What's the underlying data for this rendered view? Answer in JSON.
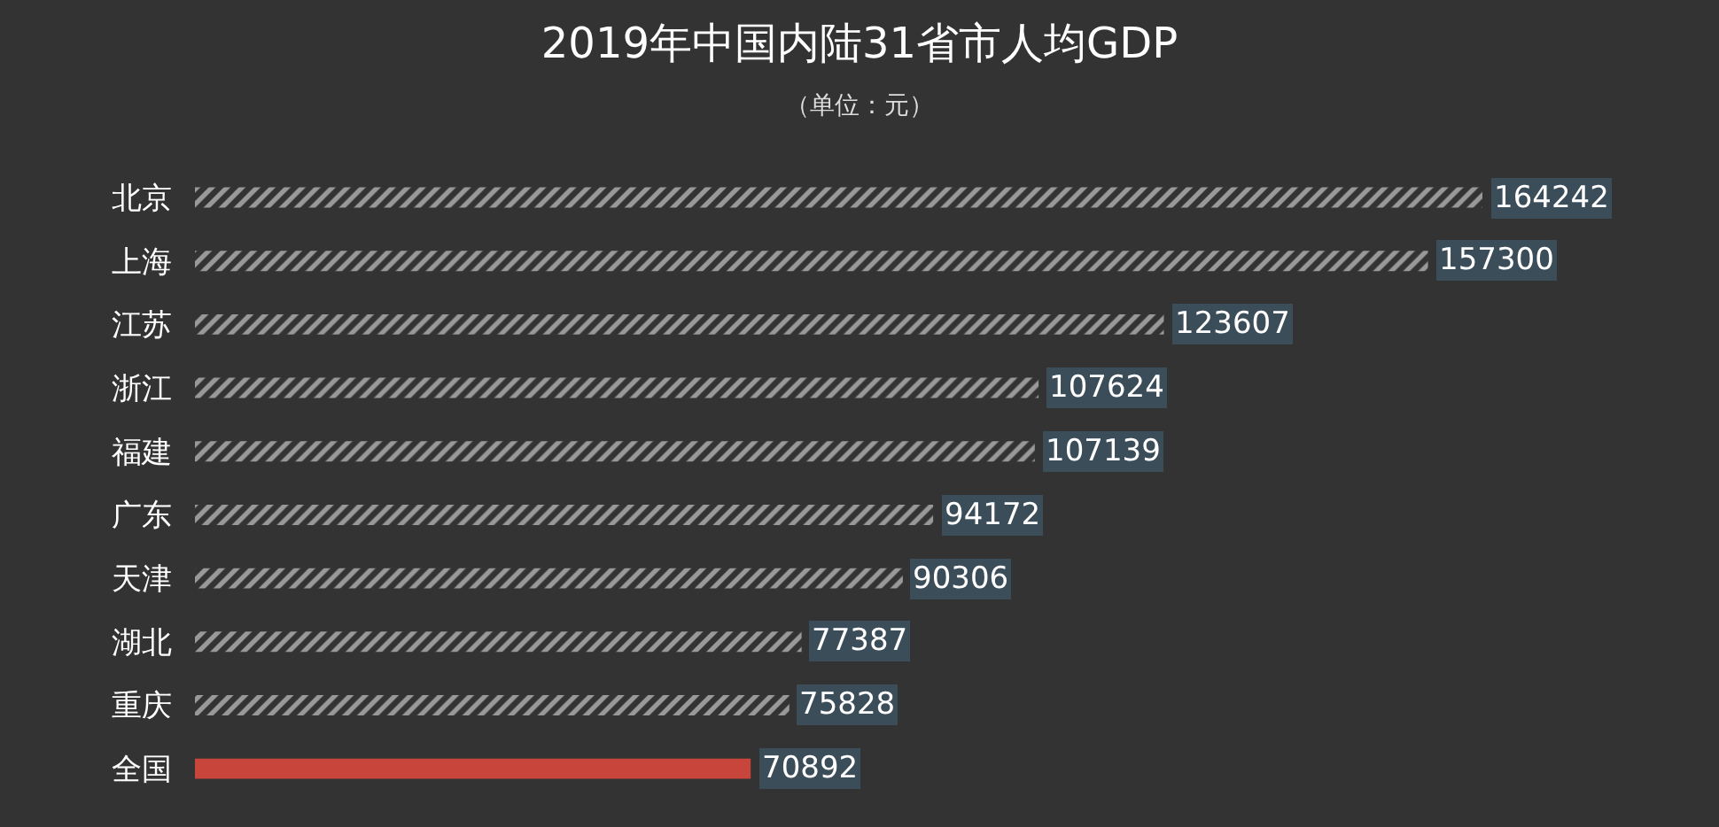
{
  "chart_data": {
    "type": "bar",
    "orientation": "horizontal",
    "title": "2019年中国内陆31省市人均GDP",
    "subtitle": "（单位：元）",
    "categories": [
      "北京",
      "上海",
      "江苏",
      "浙江",
      "福建",
      "广东",
      "天津",
      "湖北",
      "重庆",
      "全国"
    ],
    "values": [
      164242,
      157300,
      123607,
      107624,
      107139,
      94172,
      90306,
      77387,
      75828,
      70892
    ],
    "colors": [
      "#ffffff",
      "#ffffff",
      "#ffffff",
      "#ffffff",
      "#ffffff",
      "#ffffff",
      "#ffffff",
      "#ffffff",
      "#ffffff",
      "#c8453c"
    ],
    "data_labels": true,
    "legend": false,
    "grid": false
  }
}
